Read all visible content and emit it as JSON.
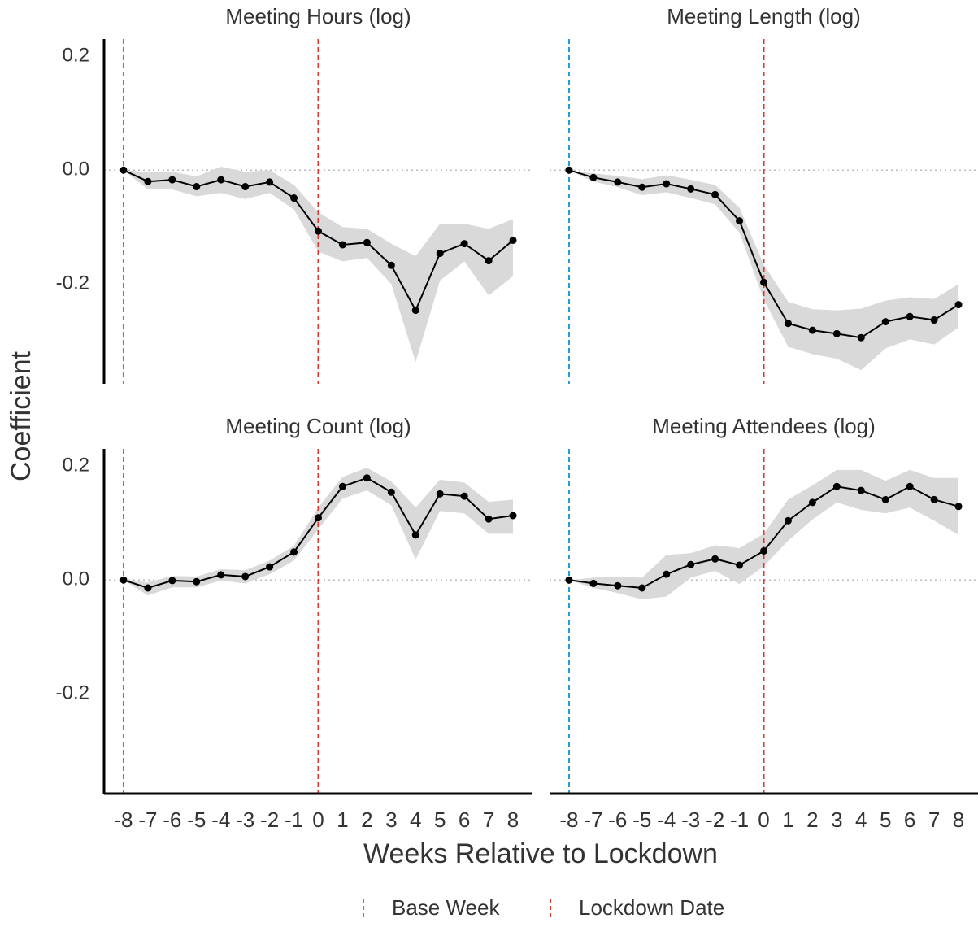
{
  "y_label": "Coefficient",
  "x_label": "Weeks Relative to Lockdown",
  "xlim": [
    -8.8,
    8.8
  ],
  "xticks": [
    -8,
    -7,
    -6,
    -5,
    -4,
    -3,
    -2,
    -1,
    0,
    1,
    2,
    3,
    4,
    5,
    6,
    7,
    8
  ],
  "ylim": [
    -0.375,
    0.23
  ],
  "yticks": [
    -0.2,
    {
      "value": 0,
      "label": "0.0"
    },
    0.2
  ],
  "hline": 0,
  "ref_lines": [
    {
      "name": "Base Week",
      "x": -8,
      "color": "#1f9bd7"
    },
    {
      "name": "Lockdown Date",
      "x": 0,
      "color": "#e4312b"
    }
  ],
  "band_color": "#d9d9d9",
  "chart_data": [
    {
      "type": "line",
      "title": "Meeting Hours (log)",
      "x": [
        -8,
        -7,
        -6,
        -5,
        -4,
        -3,
        -2,
        -1,
        0,
        1,
        2,
        3,
        4,
        5,
        6,
        7,
        8
      ],
      "series": [
        {
          "color": "#000000",
          "values": [
            0,
            -0.02,
            -0.017,
            -0.029,
            -0.017,
            -0.029,
            -0.021,
            -0.049,
            -0.107,
            -0.131,
            -0.127,
            -0.167,
            -0.246,
            -0.146,
            -0.129,
            -0.159,
            -0.123
          ],
          "upper": [
            0,
            -0.004,
            -0.003,
            -0.011,
            0.006,
            -0.003,
            0,
            -0.026,
            -0.074,
            -0.1,
            -0.103,
            -0.129,
            -0.151,
            -0.094,
            -0.094,
            -0.103,
            -0.086
          ],
          "lower": [
            0,
            -0.034,
            -0.034,
            -0.046,
            -0.04,
            -0.051,
            -0.04,
            -0.069,
            -0.143,
            -0.16,
            -0.154,
            -0.2,
            -0.337,
            -0.194,
            -0.16,
            -0.22,
            -0.186
          ]
        }
      ]
    },
    {
      "type": "line",
      "title": "Meeting Length (log)",
      "x": [
        -8,
        -7,
        -6,
        -5,
        -4,
        -3,
        -2,
        -1,
        0,
        1,
        2,
        3,
        4,
        5,
        6,
        7,
        8
      ],
      "series": [
        {
          "color": "#000000",
          "values": [
            0,
            -0.013,
            -0.021,
            -0.03,
            -0.024,
            -0.033,
            -0.043,
            -0.089,
            -0.197,
            -0.269,
            -0.281,
            -0.287,
            -0.294,
            -0.266,
            -0.257,
            -0.263,
            -0.236
          ],
          "upper": [
            0,
            -0.006,
            -0.01,
            -0.016,
            -0.009,
            -0.017,
            -0.026,
            -0.066,
            -0.166,
            -0.231,
            -0.244,
            -0.246,
            -0.243,
            -0.229,
            -0.223,
            -0.226,
            -0.2
          ],
          "lower": [
            0,
            -0.02,
            -0.03,
            -0.044,
            -0.039,
            -0.049,
            -0.06,
            -0.11,
            -0.227,
            -0.31,
            -0.323,
            -0.331,
            -0.351,
            -0.313,
            -0.297,
            -0.306,
            -0.276
          ]
        }
      ]
    },
    {
      "type": "line",
      "title": "Meeting Count (log)",
      "x": [
        -8,
        -7,
        -6,
        -5,
        -4,
        -3,
        -2,
        -1,
        0,
        1,
        2,
        3,
        4,
        5,
        6,
        7,
        8
      ],
      "series": [
        {
          "color": "#000000",
          "values": [
            0,
            -0.014,
            -0.001,
            -0.003,
            0.009,
            0.006,
            0.023,
            0.049,
            0.109,
            0.164,
            0.179,
            0.154,
            0.079,
            0.151,
            0.147,
            0.107,
            0.113
          ],
          "upper": [
            0,
            -0.004,
            0.007,
            0.006,
            0.019,
            0.017,
            0.034,
            0.06,
            0.127,
            0.181,
            0.197,
            0.173,
            0.127,
            0.176,
            0.171,
            0.137,
            0.141
          ],
          "lower": [
            0,
            -0.027,
            -0.013,
            -0.013,
            -0.001,
            -0.006,
            0.01,
            0.034,
            0.089,
            0.143,
            0.157,
            0.131,
            0.036,
            0.121,
            0.117,
            0.081,
            0.081
          ]
        }
      ]
    },
    {
      "type": "line",
      "title": "Meeting Attendees (log)",
      "x": [
        -8,
        -7,
        -6,
        -5,
        -4,
        -3,
        -2,
        -1,
        0,
        1,
        2,
        3,
        4,
        5,
        6,
        7,
        8
      ],
      "series": [
        {
          "color": "#000000",
          "values": [
            0,
            -0.006,
            -0.01,
            -0.014,
            0.01,
            0.027,
            0.037,
            0.026,
            0.051,
            0.104,
            0.136,
            0.164,
            0.157,
            0.141,
            0.164,
            0.141,
            0.129
          ],
          "upper": [
            0,
            0.004,
            0.006,
            0.004,
            0.044,
            0.047,
            0.061,
            0.056,
            0.081,
            0.141,
            0.166,
            0.193,
            0.193,
            0.174,
            0.193,
            0.179,
            0.179
          ],
          "lower": [
            0,
            -0.014,
            -0.023,
            -0.034,
            -0.029,
            0.004,
            0.016,
            -0.007,
            0.024,
            0.069,
            0.106,
            0.136,
            0.123,
            0.117,
            0.127,
            0.104,
            0.079
          ]
        }
      ]
    }
  ]
}
